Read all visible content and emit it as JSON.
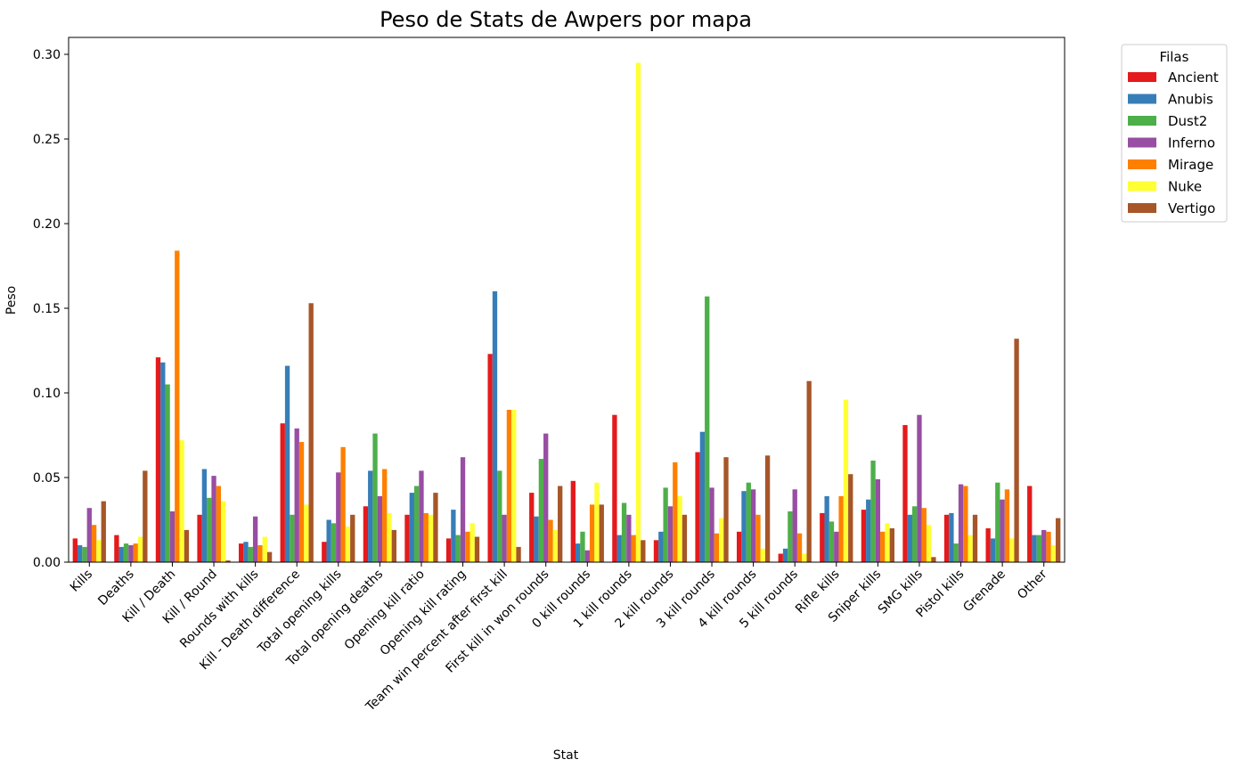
{
  "chart_data": {
    "type": "bar",
    "title": "Peso de Stats de Awpers por mapa",
    "xlabel": "Stat",
    "ylabel": "Peso",
    "ylim": [
      0,
      0.31
    ],
    "yticks": [
      "0.00",
      "0.05",
      "0.10",
      "0.15",
      "0.20",
      "0.25",
      "0.30"
    ],
    "grid": false,
    "legend": {
      "title": "Filas",
      "placement": "outside-top-right"
    },
    "categories": [
      "Kills",
      "Deaths",
      "Kill / Death",
      "Kill / Round",
      "Rounds with kills",
      "Kill - Death difference",
      "Total opening kills",
      "Total opening deaths",
      "Opening kill ratio",
      "Opening kill rating",
      "Team win percent after first kill",
      "First kill in won rounds",
      "0 kill rounds",
      "1 kill rounds",
      "2 kill rounds",
      "3 kill rounds",
      "4 kill rounds",
      "5 kill rounds",
      "Rifle kills",
      "Sniper kills",
      "SMG kills",
      "Pistol kills",
      "Grenade",
      "Other"
    ],
    "series": [
      {
        "name": "Ancient",
        "color": "#e41a1c",
        "values": [
          0.014,
          0.016,
          0.121,
          0.028,
          0.011,
          0.082,
          0.012,
          0.033,
          0.028,
          0.014,
          0.123,
          0.041,
          0.048,
          0.087,
          0.013,
          0.065,
          0.018,
          0.005,
          0.029,
          0.031,
          0.081,
          0.028,
          0.02,
          0.045
        ]
      },
      {
        "name": "Anubis",
        "color": "#377eb8",
        "values": [
          0.01,
          0.009,
          0.118,
          0.055,
          0.012,
          0.116,
          0.025,
          0.054,
          0.041,
          0.031,
          0.16,
          0.027,
          0.011,
          0.016,
          0.018,
          0.077,
          0.042,
          0.008,
          0.039,
          0.037,
          0.028,
          0.029,
          0.014,
          0.016
        ]
      },
      {
        "name": "Dust2",
        "color": "#4daf4a",
        "values": [
          0.009,
          0.011,
          0.105,
          0.038,
          0.009,
          0.028,
          0.023,
          0.076,
          0.045,
          0.016,
          0.054,
          0.061,
          0.018,
          0.035,
          0.044,
          0.157,
          0.047,
          0.03,
          0.024,
          0.06,
          0.033,
          0.011,
          0.047,
          0.016
        ]
      },
      {
        "name": "Inferno",
        "color": "#984ea3",
        "values": [
          0.032,
          0.01,
          0.03,
          0.051,
          0.027,
          0.079,
          0.053,
          0.039,
          0.054,
          0.062,
          0.028,
          0.076,
          0.007,
          0.028,
          0.033,
          0.044,
          0.043,
          0.043,
          0.018,
          0.049,
          0.087,
          0.046,
          0.037,
          0.019
        ]
      },
      {
        "name": "Mirage",
        "color": "#ff7f00",
        "values": [
          0.022,
          0.011,
          0.184,
          0.045,
          0.01,
          0.071,
          0.068,
          0.055,
          0.029,
          0.018,
          0.09,
          0.025,
          0.034,
          0.016,
          0.059,
          0.017,
          0.028,
          0.017,
          0.039,
          0.018,
          0.032,
          0.045,
          0.043,
          0.018
        ]
      },
      {
        "name": "Nuke",
        "color": "#ffff33",
        "values": [
          0.013,
          0.015,
          0.072,
          0.036,
          0.015,
          0.034,
          0.021,
          0.029,
          0.028,
          0.023,
          0.09,
          0.019,
          0.047,
          0.295,
          0.039,
          0.026,
          0.008,
          0.005,
          0.096,
          0.023,
          0.022,
          0.016,
          0.014,
          0.01
        ]
      },
      {
        "name": "Vertigo",
        "color": "#a65628",
        "values": [
          0.036,
          0.054,
          0.019,
          0.001,
          0.006,
          0.153,
          0.028,
          0.019,
          0.041,
          0.015,
          0.009,
          0.045,
          0.034,
          0.013,
          0.028,
          0.062,
          0.063,
          0.107,
          0.052,
          0.02,
          0.003,
          0.028,
          0.132,
          0.026
        ]
      }
    ]
  }
}
